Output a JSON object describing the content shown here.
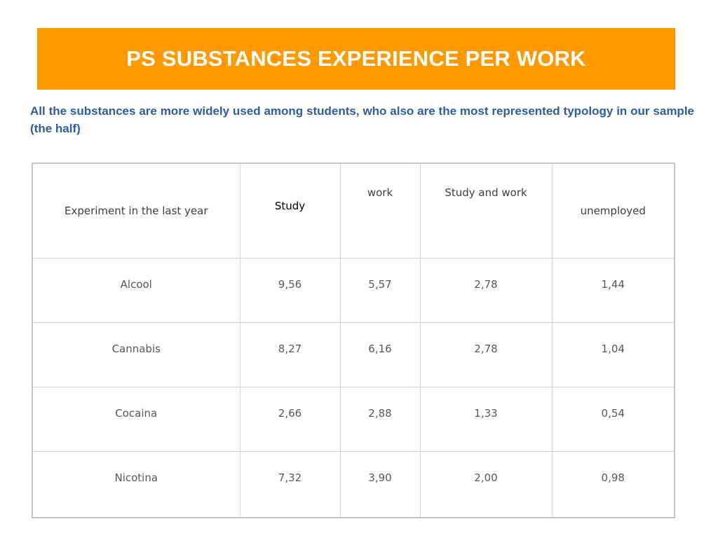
{
  "slide": {
    "title": "PS SUBSTANCES EXPERIENCE PER WORK",
    "subtitle": "All the substances are more widely used among students, who also are the most represented typology in our sample (the half)",
    "colors": {
      "banner": "#ff9900",
      "title_text": "#ffffff",
      "subtitle_text": "#2e5e9e"
    }
  },
  "table": {
    "headers": [
      "Experiment in the last year",
      "Study",
      "work",
      "Study and work",
      "unemployed"
    ],
    "rows": [
      [
        "Alcool",
        "9,56",
        "5,57",
        "2,78",
        "1,44"
      ],
      [
        "Cannabis",
        "8,27",
        "6,16",
        "2,78",
        "1,04"
      ],
      [
        "Cocaina",
        "2,66",
        "2,88",
        "1,33",
        "0,54"
      ],
      [
        "Nicotina",
        "7,32",
        "3,90",
        "2,00",
        "0,98"
      ]
    ]
  }
}
